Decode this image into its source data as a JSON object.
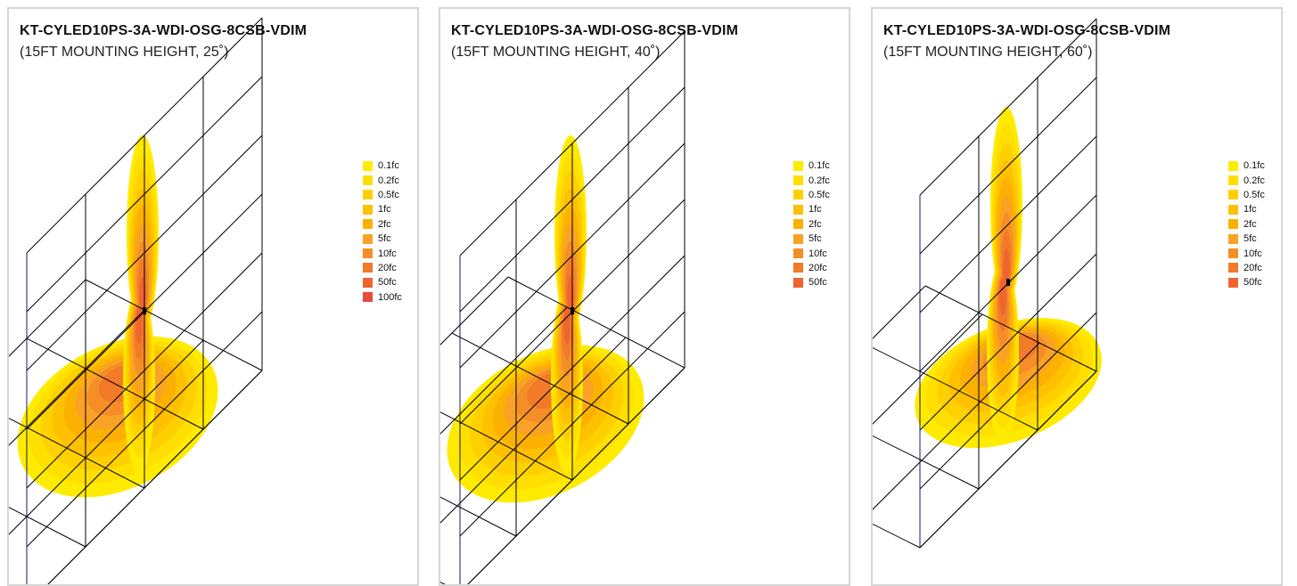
{
  "colors": {
    "levels": [
      "#FFEB00",
      "#FFDF00",
      "#FFD000",
      "#FFC000",
      "#FCB000",
      "#F9A226",
      "#F58E26",
      "#F27A28",
      "#EE6530",
      "#E94B3C"
    ],
    "grid": "#000000",
    "frame_edge": "#1a1a5e",
    "fixture": "#000000"
  },
  "panels": [
    {
      "title": "KT-CYLED10PS-3A-WDI-OSG-8CSB-VDIM",
      "subtitle": "(15FT MOUNTING HEIGHT, 25˚)",
      "legend": [
        "0.1fc",
        "0.2fc",
        "0.5fc",
        "1fc",
        "2fc",
        "5fc",
        "10fc",
        "20fc",
        "50fc",
        "100fc"
      ]
    },
    {
      "title": "KT-CYLED10PS-3A-WDI-OSG-8CSB-VDIM",
      "subtitle": "(15FT MOUNTING HEIGHT, 40˚)",
      "legend": [
        "0.1fc",
        "0.2fc",
        "0.5fc",
        "1fc",
        "2fc",
        "5fc",
        "10fc",
        "20fc",
        "50fc"
      ]
    },
    {
      "title": "KT-CYLED10PS-3A-WDI-OSG-8CSB-VDIM",
      "subtitle": "(15FT MOUNTING HEIGHT, 60˚)",
      "legend": [
        "0.1fc",
        "0.2fc",
        "0.5fc",
        "1fc",
        "2fc",
        "5fc",
        "10fc",
        "20fc",
        "50fc"
      ]
    }
  ]
}
